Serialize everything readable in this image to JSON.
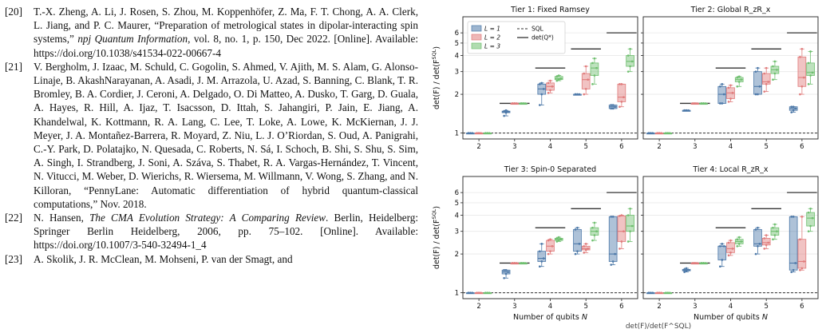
{
  "references": [
    {
      "num": "[20]",
      "parts": [
        {
          "t": "T.-X. Zheng, A. Li, J. Rosen, S. Zhou, M. Koppenhöfer, Z. Ma, F. T. Chong, A. A. Clerk, L. Jiang, and P. C. Maurer, “Preparation of metrological states in dipolar-interacting spin systems,” ",
          "i": false
        },
        {
          "t": "npj Quantum Information",
          "i": true
        },
        {
          "t": ", vol. 8, no. 1, p. 150, Dec 2022. [Online]. Available: https://doi.org/10.1038/s41534-022-00667-4",
          "i": false
        }
      ]
    },
    {
      "num": "[21]",
      "parts": [
        {
          "t": "V. Bergholm, J. Izaac, M. Schuld, C. Gogolin, S. Ahmed, V. Ajith, M. S. Alam, G. Alonso-Linaje, B. AkashNarayanan, A. Asadi, J. M. Arrazola, U. Azad, S. Banning, C. Blank, T. R. Bromley, B. A. Cordier, J. Ceroni, A. Delgado, O. Di Matteo, A. Dusko, T. Garg, D. Guala, A. Hayes, R. Hill, A. Ijaz, T. Isacsson, D. Ittah, S. Jahangiri, P. Jain, E. Jiang, A. Khandelwal, K. Kottmann, R. A. Lang, C. Lee, T. Loke, A. Lowe, K. McKiernan, J. J. Meyer, J. A. Montañez-Barrera, R. Moyard, Z. Niu, L. J. O’Riordan, S. Oud, A. Panigrahi, C.-Y. Park, D. Polatajko, N. Quesada, C. Roberts, N. Sá, I. Schoch, B. Shi, S. Shu, S. Sim, A. Singh, I. Strandberg, J. Soni, A. Száva, S. Thabet, R. A. Vargas-Hernández, T. Vincent, N. Vitucci, M. Weber, D. Wierichs, R. Wiersema, M. Willmann, V. Wong, S. Zhang, and N. Killoran, “PennyLane: Automatic differentiation of hybrid quantum-classical computations,” Nov. 2018.",
          "i": false
        }
      ]
    },
    {
      "num": "[22]",
      "parts": [
        {
          "t": "N. Hansen, ",
          "i": false
        },
        {
          "t": "The CMA Evolution Strategy: A Comparing Review",
          "i": true
        },
        {
          "t": ". Berlin, Heidelberg: Springer Berlin Heidelberg, 2006, pp. 75–102. [Online]. Available: https://doi.org/10.1007/3-540-32494-1_4",
          "i": false
        }
      ]
    },
    {
      "num": "[23]",
      "parts": [
        {
          "t": "A. Skolik, J. R. McClean, M. Mohseni, P. van der Smagt, and",
          "i": false
        }
      ]
    }
  ],
  "chart_data": [
    {
      "type": "box",
      "title": "Tier 1: Fixed Ramsey",
      "x": [
        2,
        3,
        4,
        5,
        6
      ],
      "ylabel": "det(F) / det(F^SQL)",
      "log_y": true,
      "ylim": [
        0.9,
        8
      ],
      "yticks": [
        "1",
        "2",
        "3",
        "4",
        "5",
        "6"
      ],
      "legend_position": "upper-left",
      "series": [
        {
          "name": "L = 1",
          "color": "#4c78a8",
          "boxes": [
            [
              1,
              1,
              1,
              1,
              1
            ],
            [
              1.36,
              1.44,
              1.46,
              1.48,
              1.5
            ],
            [
              1.65,
              2.0,
              2.2,
              2.4,
              2.45
            ],
            [
              2.0,
              2.0,
              2.0,
              2.0,
              2.0
            ],
            [
              1.55,
              1.55,
              1.6,
              1.65,
              1.65
            ]
          ]
        },
        {
          "name": "L = 2",
          "color": "#e07b7b",
          "boxes": [
            [
              1,
              1,
              1,
              1,
              1
            ],
            [
              1.7,
              1.7,
              1.7,
              1.7,
              1.7
            ],
            [
              2.05,
              2.15,
              2.3,
              2.45,
              2.55
            ],
            [
              2.0,
              2.2,
              2.6,
              2.9,
              3.3
            ],
            [
              1.6,
              1.75,
              1.9,
              2.4,
              2.4
            ]
          ]
        },
        {
          "name": "L = 3",
          "color": "#6fbf6f",
          "boxes": [
            [
              1,
              1,
              1,
              1,
              1
            ],
            [
              1.7,
              1.7,
              1.7,
              1.7,
              1.7
            ],
            [
              2.55,
              2.6,
              2.65,
              2.75,
              2.8
            ],
            [
              2.4,
              2.8,
              3.2,
              3.5,
              3.8
            ],
            [
              3.0,
              3.3,
              3.6,
              4.0,
              4.5
            ]
          ]
        }
      ],
      "det_Q_star": [
        1,
        1.7,
        3.2,
        4.5,
        6.0
      ]
    },
    {
      "type": "box",
      "title": "Tier 2: Global R_zR_x",
      "x": [
        2,
        3,
        4,
        5,
        6
      ],
      "log_y": true,
      "ylim": [
        0.9,
        8
      ],
      "series": [
        {
          "name": "L = 1",
          "color": "#4c78a8",
          "boxes": [
            [
              1,
              1,
              1,
              1,
              1
            ],
            [
              1.5,
              1.5,
              1.5,
              1.5,
              1.5
            ],
            [
              1.7,
              1.7,
              2.0,
              2.3,
              2.4
            ],
            [
              2.0,
              2.0,
              2.3,
              3.0,
              3.2
            ],
            [
              1.45,
              1.5,
              1.55,
              1.6,
              1.6
            ]
          ]
        },
        {
          "name": "L = 2",
          "color": "#e07b7b",
          "boxes": [
            [
              1,
              1,
              1,
              1,
              1
            ],
            [
              1.7,
              1.7,
              1.7,
              1.7,
              1.7
            ],
            [
              1.75,
              1.85,
              2.05,
              2.25,
              2.35
            ],
            [
              2.1,
              2.4,
              2.5,
              2.9,
              3.2
            ],
            [
              2.0,
              2.3,
              2.7,
              3.9,
              4.5
            ]
          ]
        },
        {
          "name": "L = 3",
          "color": "#6fbf6f",
          "boxes": [
            [
              1,
              1,
              1,
              1,
              1
            ],
            [
              1.7,
              1.7,
              1.7,
              1.7,
              1.7
            ],
            [
              2.3,
              2.5,
              2.6,
              2.7,
              2.75
            ],
            [
              2.6,
              2.9,
              3.1,
              3.3,
              3.6
            ],
            [
              2.4,
              2.8,
              2.95,
              3.5,
              4.3
            ]
          ]
        }
      ],
      "det_Q_star": [
        1,
        1.7,
        3.2,
        4.5,
        6.0
      ]
    },
    {
      "type": "box",
      "title": "Tier 3: Spin-0 Separated",
      "x": [
        2,
        3,
        4,
        5,
        6
      ],
      "xlabel": "Number of qubits N",
      "ylabel": "det(F) / det(F^SQL)",
      "log_y": true,
      "ylim": [
        0.9,
        8
      ],
      "yticks": [
        "1",
        "2",
        "3",
        "4",
        "5",
        "6"
      ],
      "series": [
        {
          "name": "L = 1",
          "color": "#4c78a8",
          "boxes": [
            [
              1,
              1,
              1,
              1,
              1
            ],
            [
              1.3,
              1.4,
              1.45,
              1.5,
              1.5
            ],
            [
              1.6,
              1.75,
              1.85,
              2.1,
              2.4
            ],
            [
              2.0,
              2.1,
              2.4,
              3.1,
              3.2
            ],
            [
              1.65,
              1.75,
              2.0,
              3.9,
              3.9
            ]
          ]
        },
        {
          "name": "L = 2",
          "color": "#e07b7b",
          "boxes": [
            [
              1,
              1,
              1,
              1,
              1
            ],
            [
              1.7,
              1.7,
              1.7,
              1.7,
              1.7
            ],
            [
              2.0,
              2.1,
              2.3,
              2.55,
              2.6
            ],
            [
              2.05,
              2.15,
              2.2,
              2.3,
              2.4
            ],
            [
              2.2,
              2.5,
              3.0,
              3.95,
              4.0
            ]
          ]
        },
        {
          "name": "L = 3",
          "color": "#6fbf6f",
          "boxes": [
            [
              1,
              1,
              1,
              1,
              1
            ],
            [
              1.7,
              1.7,
              1.7,
              1.7,
              1.7
            ],
            [
              2.5,
              2.55,
              2.6,
              2.65,
              2.7
            ],
            [
              2.55,
              2.8,
              3.0,
              3.2,
              3.5
            ],
            [
              2.5,
              3.0,
              3.3,
              4.0,
              4.5
            ]
          ]
        }
      ],
      "det_Q_star": [
        1,
        1.7,
        3.2,
        4.5,
        6.0
      ]
    },
    {
      "type": "box",
      "title": "Tier 4: Local R_zR_x",
      "x": [
        2,
        3,
        4,
        5,
        6
      ],
      "xlabel": "Number of qubits N",
      "log_y": true,
      "ylim": [
        0.9,
        8
      ],
      "series": [
        {
          "name": "L = 1",
          "color": "#4c78a8",
          "boxes": [
            [
              1,
              1,
              1,
              1,
              1
            ],
            [
              1.45,
              1.48,
              1.5,
              1.52,
              1.55
            ],
            [
              1.6,
              1.8,
              2.3,
              2.3,
              2.4
            ],
            [
              2.0,
              2.3,
              2.4,
              3.1,
              3.2
            ],
            [
              1.45,
              1.5,
              1.7,
              3.9,
              3.9
            ]
          ]
        },
        {
          "name": "L = 2",
          "color": "#e07b7b",
          "boxes": [
            [
              1,
              1,
              1,
              1,
              1
            ],
            [
              1.7,
              1.7,
              1.7,
              1.7,
              1.7
            ],
            [
              1.95,
              2.05,
              2.2,
              2.45,
              2.55
            ],
            [
              2.2,
              2.35,
              2.45,
              2.65,
              2.8
            ],
            [
              1.5,
              1.55,
              1.75,
              2.6,
              3.9
            ]
          ]
        },
        {
          "name": "L = 3",
          "color": "#6fbf6f",
          "boxes": [
            [
              1,
              1,
              1,
              1,
              1
            ],
            [
              1.7,
              1.7,
              1.7,
              1.7,
              1.7
            ],
            [
              2.3,
              2.4,
              2.5,
              2.6,
              2.7
            ],
            [
              2.6,
              2.8,
              3.0,
              3.2,
              3.4
            ],
            [
              3.0,
              3.3,
              3.8,
              4.2,
              4.5
            ]
          ]
        }
      ],
      "det_Q_star": [
        1,
        1.7,
        3.2,
        4.5,
        6.0
      ]
    }
  ],
  "figure_labels": {
    "ylabel_main": "det(F) / det(F",
    "ylabel_sup": "SQL",
    "ylabel_end": ")",
    "xlabel_main": "Number of qubits ",
    "xlabel_var": "N",
    "legend": {
      "l1": "L = 1",
      "l2": "L = 2",
      "l3": "L = 3",
      "sql": "SQL",
      "detq": "det(Q*)"
    },
    "caption_fragment": "det(F)/det(F^SQL)"
  }
}
